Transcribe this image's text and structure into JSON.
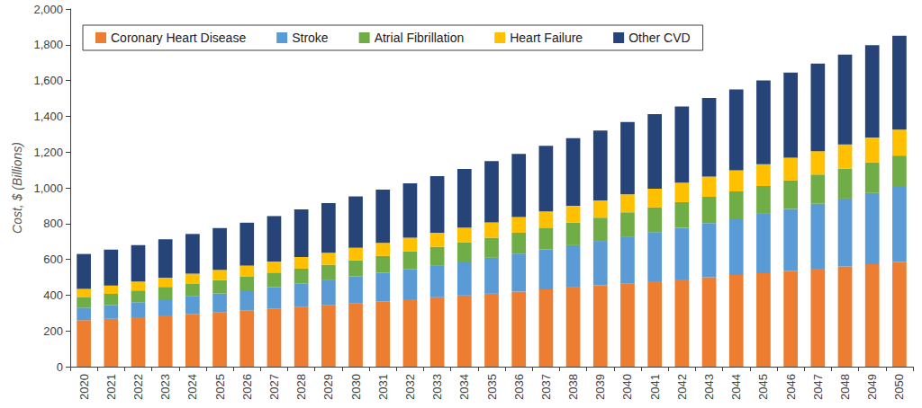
{
  "chart_data": {
    "type": "bar",
    "stacked": true,
    "orientation": "vertical",
    "grid": false,
    "legend": "top",
    "y_label": "Cost, $ (Billions)",
    "categories": [
      "2020",
      "2021",
      "2022",
      "2023",
      "2024",
      "2025",
      "2026",
      "2027",
      "2028",
      "2029",
      "2030",
      "2031",
      "2032",
      "2033",
      "2034",
      "2035",
      "2036",
      "2037",
      "2038",
      "2039",
      "2040",
      "2041",
      "2042",
      "2043",
      "2044",
      "2045",
      "2046",
      "2047",
      "2048",
      "2049",
      "2050"
    ],
    "ylim": [
      0,
      2000
    ],
    "yticks": [
      0,
      200,
      400,
      600,
      800,
      {
        "value": 1000,
        "label": "1,000"
      },
      {
        "value": 1200,
        "label": "1,200"
      },
      {
        "value": 1400,
        "label": "1,400"
      },
      {
        "value": 1600,
        "label": "1,600"
      },
      {
        "value": 1800,
        "label": "1,800"
      },
      {
        "value": 2000,
        "label": "2,000"
      }
    ],
    "series": [
      {
        "name": "Coronary Heart Disease",
        "color": "#ed7d31",
        "values": [
          260,
          268,
          277,
          287,
          295,
          303,
          313,
          323,
          333,
          343,
          355,
          366,
          377,
          388,
          398,
          408,
          420,
          432,
          443,
          454,
          466,
          477,
          488,
          500,
          512,
          523,
          535,
          548,
          560,
          573,
          585
        ]
      },
      {
        "name": "Stroke",
        "color": "#5b9bd5",
        "values": [
          70,
          76,
          83,
          90,
          98,
          106,
          114,
          122,
          131,
          140,
          150,
          159,
          169,
          179,
          190,
          201,
          212,
          224,
          236,
          249,
          262,
          275,
          289,
          303,
          317,
          332,
          347,
          363,
          380,
          398,
          420
        ]
      },
      {
        "name": "Atrial Fibrillation",
        "color": "#70ad47",
        "values": [
          60,
          63,
          66,
          69,
          72,
          75,
          78,
          81,
          84,
          87,
          90,
          94,
          99,
          103,
          108,
          112,
          117,
          121,
          126,
          130,
          135,
          139,
          143,
          147,
          151,
          155,
          159,
          163,
          167,
          171,
          175
        ]
      },
      {
        "name": "Heart Failure",
        "color": "#ffc000",
        "values": [
          45,
          47,
          50,
          52,
          55,
          57,
          60,
          62,
          65,
          67,
          70,
          73,
          76,
          79,
          82,
          85,
          88,
          91,
          94,
          97,
          100,
          104,
          109,
          113,
          118,
          122,
          127,
          131,
          136,
          140,
          145
        ]
      },
      {
        "name": "Other CVD",
        "color": "#264478",
        "values": [
          195,
          201,
          204,
          214,
          222,
          234,
          240,
          254,
          267,
          278,
          287,
          298,
          304,
          316,
          327,
          344,
          353,
          367,
          379,
          390,
          405,
          417,
          426,
          440,
          452,
          468,
          477,
          490,
          502,
          516,
          525
        ]
      }
    ]
  }
}
